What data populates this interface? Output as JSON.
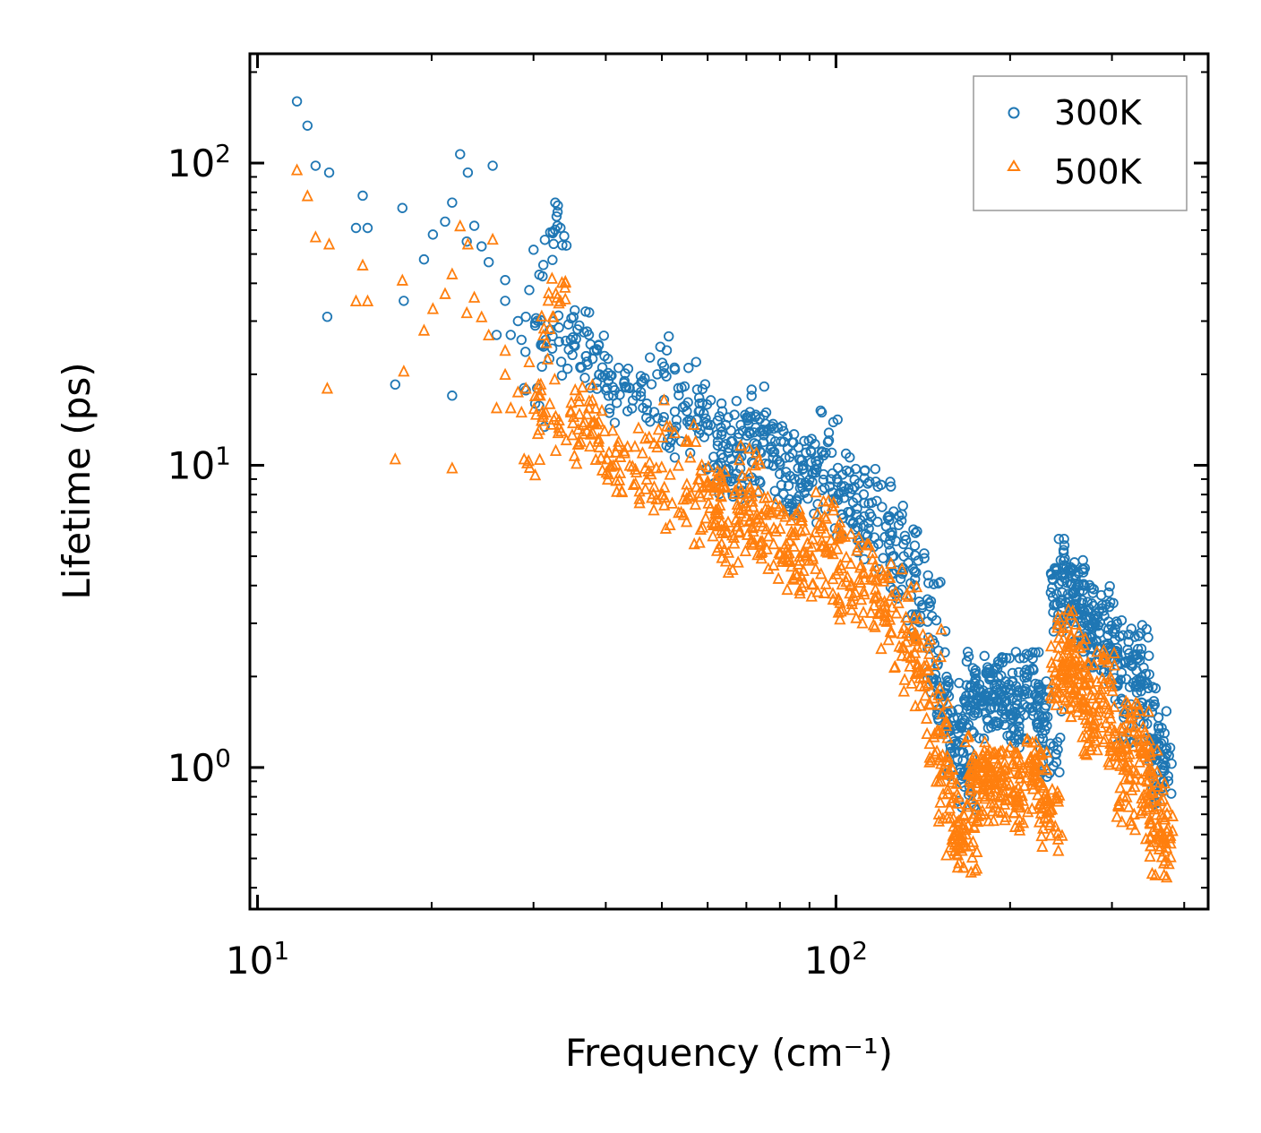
{
  "chart_data": {
    "type": "scatter",
    "title": "",
    "xlabel": "Frequency (cm⁻¹)",
    "ylabel": "Lifetime (ps)",
    "xscale": "log",
    "yscale": "log",
    "xlim": [
      9.7,
      440
    ],
    "ylim": [
      0.34,
      230
    ],
    "legend_position": "top-right",
    "x_major_ticks": [
      {
        "value": 10,
        "base": "10",
        "exp": "1"
      },
      {
        "value": 100,
        "base": "10",
        "exp": "2"
      }
    ],
    "y_major_ticks": [
      {
        "value": 1,
        "base": "10",
        "exp": "0"
      },
      {
        "value": 10,
        "base": "10",
        "exp": "1"
      },
      {
        "value": 100,
        "base": "10",
        "exp": "2"
      }
    ],
    "series": [
      {
        "name": "300K",
        "marker": "circle",
        "color": "#1f77b4",
        "points": [
          [
            11.7,
            160
          ],
          [
            12.2,
            133
          ],
          [
            12.6,
            98
          ],
          [
            13.3,
            93
          ],
          [
            13.2,
            31
          ],
          [
            14.8,
            61
          ],
          [
            15.2,
            78
          ],
          [
            15.5,
            61
          ],
          [
            17.3,
            18.5
          ],
          [
            17.8,
            71
          ],
          [
            17.9,
            35
          ],
          [
            19.4,
            48
          ],
          [
            20.1,
            58
          ],
          [
            21.1,
            64
          ],
          [
            21.7,
            74
          ],
          [
            21.7,
            17
          ],
          [
            22.4,
            107
          ],
          [
            23.1,
            93
          ],
          [
            23.0,
            55
          ],
          [
            23.7,
            62
          ],
          [
            24.4,
            53
          ],
          [
            25.1,
            47
          ],
          [
            25.5,
            98
          ],
          [
            25.9,
            27
          ],
          [
            26.8,
            41
          ],
          [
            26.8,
            35
          ],
          [
            27.4,
            27
          ],
          [
            28.2,
            30
          ],
          [
            28.6,
            26
          ],
          [
            29.1,
            31
          ],
          [
            29.5,
            38
          ],
          [
            28.9,
            18
          ],
          [
            30.2,
            29
          ],
          [
            30.2,
            16
          ],
          [
            31.1,
            25
          ],
          [
            31.5,
            26
          ],
          [
            31.2,
            46
          ],
          [
            32.0,
            28
          ],
          [
            32.5,
            54
          ],
          [
            33.0,
            62
          ],
          [
            33.4,
            61
          ],
          [
            33.5,
            22
          ],
          [
            34.8,
            26
          ],
          [
            35.2,
            25
          ],
          [
            36.0,
            29
          ],
          [
            36.2,
            21
          ],
          [
            37.1,
            22
          ],
          [
            37.4,
            27
          ],
          [
            38.2,
            24
          ],
          [
            39.0,
            20
          ],
          [
            39.8,
            23
          ],
          [
            40.2,
            18
          ],
          [
            41.2,
            17
          ],
          [
            42.1,
            21
          ],
          [
            43.1,
            19
          ],
          [
            44.0,
            18
          ],
          [
            45.2,
            17
          ],
          [
            46.3,
            19
          ],
          [
            47.1,
            16
          ],
          [
            48.5,
            15
          ],
          [
            49.1,
            20
          ],
          [
            50.2,
            14
          ],
          [
            51.0,
            24
          ],
          [
            52.1,
            13
          ],
          [
            53.4,
            18
          ],
          [
            54.0,
            12
          ],
          [
            55.6,
            21
          ],
          [
            56.2,
            14
          ],
          [
            58.1,
            16
          ],
          [
            60.2,
            13
          ],
          [
            62.5,
            12
          ],
          [
            65.1,
            11
          ],
          [
            68.0,
            10.5
          ],
          [
            71.0,
            15
          ],
          [
            74.2,
            11
          ],
          [
            78.0,
            10
          ],
          [
            82.0,
            9.5
          ],
          [
            86.5,
            9
          ],
          [
            91.0,
            8.8
          ],
          [
            96.0,
            11
          ],
          [
            101,
            8
          ],
          [
            106,
            7
          ],
          [
            112,
            7.5
          ],
          [
            118,
            6.5
          ],
          [
            125,
            6
          ],
          [
            131,
            5
          ],
          [
            137,
            4.2
          ],
          [
            144,
            3.6
          ],
          [
            150,
            2.2
          ],
          [
            156,
            1.5
          ],
          [
            162,
            1.2
          ],
          [
            168,
            0.93
          ],
          [
            174,
            1.9
          ],
          [
            180,
            1.6
          ],
          [
            188,
            1.7
          ],
          [
            196,
            1.8
          ],
          [
            205,
            1.5
          ],
          [
            214,
            1.9
          ],
          [
            224,
            1.7
          ],
          [
            235,
            1.2
          ],
          [
            246,
            3.6
          ],
          [
            252,
            4.5
          ],
          [
            258,
            3.8
          ],
          [
            266,
            3.2
          ],
          [
            278,
            2.6
          ],
          [
            290,
            3.3
          ],
          [
            304,
            2.4
          ],
          [
            318,
            1.5
          ],
          [
            333,
            2.3
          ],
          [
            346,
            1.6
          ],
          [
            358,
            1.2
          ],
          [
            365,
            0.92
          ]
        ]
      },
      {
        "name": "500K",
        "marker": "triangle",
        "color": "#ff7f0e",
        "points": [
          [
            11.7,
            95
          ],
          [
            12.2,
            78
          ],
          [
            12.6,
            57
          ],
          [
            13.3,
            54
          ],
          [
            13.2,
            18
          ],
          [
            14.8,
            35
          ],
          [
            15.2,
            46
          ],
          [
            15.5,
            35
          ],
          [
            17.3,
            10.5
          ],
          [
            17.8,
            41
          ],
          [
            17.9,
            20.5
          ],
          [
            19.4,
            28
          ],
          [
            20.1,
            33
          ],
          [
            21.1,
            37
          ],
          [
            21.7,
            43
          ],
          [
            21.7,
            9.8
          ],
          [
            22.4,
            62
          ],
          [
            23.1,
            54
          ],
          [
            23.0,
            32
          ],
          [
            23.7,
            36
          ],
          [
            24.4,
            31
          ],
          [
            25.1,
            27
          ],
          [
            25.5,
            56
          ],
          [
            25.9,
            15.5
          ],
          [
            26.8,
            24
          ],
          [
            26.8,
            20
          ],
          [
            27.4,
            15.5
          ],
          [
            28.2,
            17.5
          ],
          [
            28.6,
            15
          ],
          [
            29.1,
            18
          ],
          [
            29.5,
            22
          ],
          [
            28.9,
            10.5
          ],
          [
            30.2,
            17
          ],
          [
            30.2,
            9.3
          ],
          [
            31.1,
            14.5
          ],
          [
            31.5,
            15
          ],
          [
            31.2,
            27
          ],
          [
            32.0,
            16
          ],
          [
            32.5,
            31
          ],
          [
            33.0,
            36
          ],
          [
            33.4,
            35
          ],
          [
            33.5,
            13
          ],
          [
            34.8,
            15
          ],
          [
            35.2,
            14.5
          ],
          [
            36.0,
            17
          ],
          [
            36.2,
            12
          ],
          [
            37.1,
            13
          ],
          [
            37.4,
            15.5
          ],
          [
            38.2,
            14
          ],
          [
            39.0,
            11.5
          ],
          [
            39.8,
            13
          ],
          [
            40.2,
            10.5
          ],
          [
            41.2,
            10
          ],
          [
            42.1,
            12
          ],
          [
            43.1,
            11
          ],
          [
            44.0,
            10
          ],
          [
            45.2,
            9.5
          ],
          [
            46.3,
            11
          ],
          [
            47.1,
            9
          ],
          [
            48.5,
            8.5
          ],
          [
            49.1,
            11.5
          ],
          [
            50.2,
            8
          ],
          [
            51.0,
            13.5
          ],
          [
            52.1,
            7.5
          ],
          [
            53.4,
            10
          ],
          [
            54.0,
            7
          ],
          [
            55.6,
            12
          ],
          [
            56.2,
            8
          ],
          [
            58.1,
            9
          ],
          [
            60.2,
            7.5
          ],
          [
            62.5,
            7
          ],
          [
            65.1,
            6.5
          ],
          [
            68.0,
            6
          ],
          [
            71.0,
            8.5
          ],
          [
            74.2,
            6.5
          ],
          [
            78.0,
            5.5
          ],
          [
            82.0,
            5.5
          ],
          [
            86.5,
            5
          ],
          [
            91.0,
            5
          ],
          [
            96.0,
            6
          ],
          [
            101,
            4.5
          ],
          [
            106,
            4
          ],
          [
            112,
            4.2
          ],
          [
            118,
            3.7
          ],
          [
            125,
            3.4
          ],
          [
            131,
            2.9
          ],
          [
            137,
            2.4
          ],
          [
            144,
            2.1
          ],
          [
            150,
            1.3
          ],
          [
            156,
            0.85
          ],
          [
            162,
            0.66
          ],
          [
            168,
            0.55
          ],
          [
            174,
            1.0
          ],
          [
            180,
            0.85
          ],
          [
            188,
            0.9
          ],
          [
            196,
            0.95
          ],
          [
            205,
            0.8
          ],
          [
            214,
            1.0
          ],
          [
            224,
            0.9
          ],
          [
            235,
            0.66
          ],
          [
            246,
            2.0
          ],
          [
            252,
            2.6
          ],
          [
            258,
            2.2
          ],
          [
            266,
            1.8
          ],
          [
            278,
            1.4
          ],
          [
            290,
            1.9
          ],
          [
            304,
            1.3
          ],
          [
            318,
            0.8
          ],
          [
            333,
            1.3
          ],
          [
            346,
            0.9
          ],
          [
            358,
            0.7
          ],
          [
            365,
            0.55
          ]
        ]
      }
    ]
  }
}
